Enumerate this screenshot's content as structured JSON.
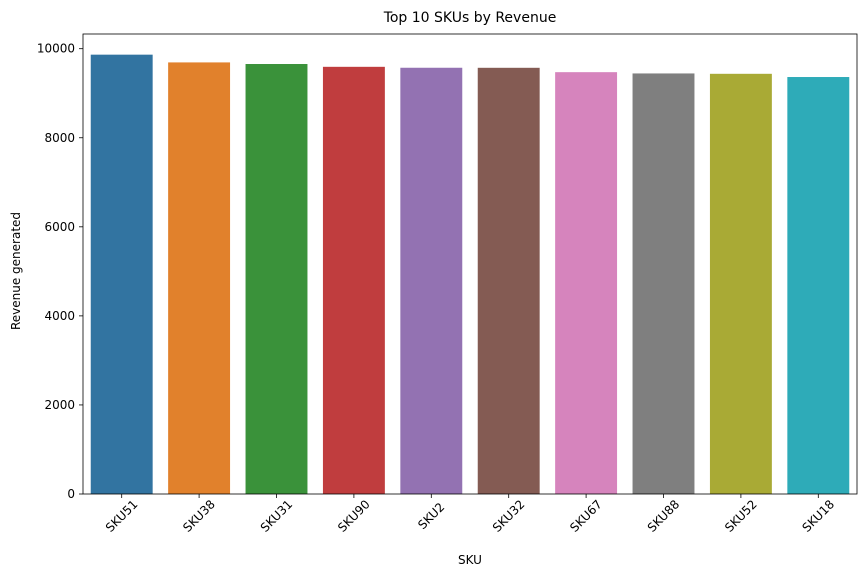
{
  "chart_data": {
    "type": "bar",
    "title": "Top 10 SKUs by Revenue",
    "xlabel": "SKU",
    "ylabel": "Revenue generated",
    "categories": [
      "SKU51",
      "SKU38",
      "SKU31",
      "SKU90",
      "SKU2",
      "SKU32",
      "SKU67",
      "SKU88",
      "SKU52",
      "SKU18"
    ],
    "values": [
      9866,
      9692,
      9656,
      9593,
      9572,
      9571,
      9473,
      9444,
      9436,
      9364
    ],
    "colors": [
      "#3274a1",
      "#e1812c",
      "#3a923a",
      "#c03d3e",
      "#9372b2",
      "#845b53",
      "#d684bd",
      "#7f7f7f",
      "#a9aa35",
      "#2eabb8"
    ],
    "ylim": [
      0,
      10330
    ],
    "yticks": [
      0,
      2000,
      4000,
      6000,
      8000,
      10000
    ],
    "grid": false,
    "legend": "none"
  }
}
